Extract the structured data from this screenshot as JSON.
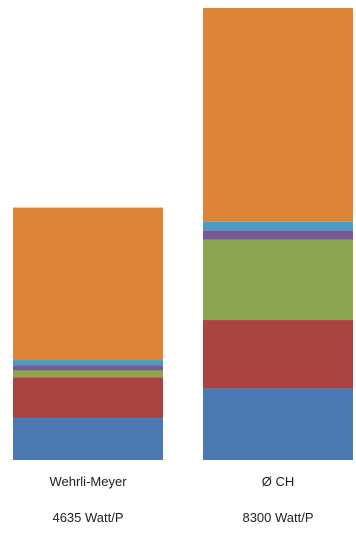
{
  "chart_data": {
    "type": "bar",
    "stacked": true,
    "categories": [
      "Wehrli-Meyer",
      "Ø CH"
    ],
    "subtitles": [
      "4635 Watt/P",
      "8300 Watt/P"
    ],
    "totals": [
      4635,
      8300
    ],
    "series": [
      {
        "values": [
          770,
          1310
        ],
        "color": "#4a79b4"
      },
      {
        "values": [
          750,
          1260
        ],
        "color": "#ab4340"
      },
      {
        "values": [
          125,
          1475
        ],
        "color": "#8ca650"
      },
      {
        "values": [
          90,
          160
        ],
        "color": "#79589a"
      },
      {
        "values": [
          100,
          170
        ],
        "color": "#4b9cc0"
      },
      {
        "values": [
          2800,
          3925
        ],
        "color": "#df8437"
      }
    ],
    "ylim": [
      0,
      8300
    ]
  }
}
